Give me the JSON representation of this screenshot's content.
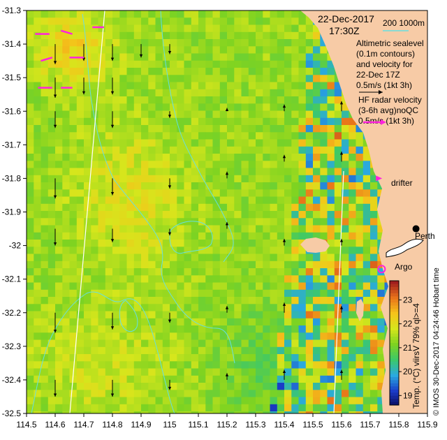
{
  "chart_data": {
    "type": "heatmap",
    "title_date": "22-Dec-2017",
    "title_time": "17:30Z",
    "xlim": [
      114.5,
      115.9
    ],
    "ylim": [
      -32.5,
      -31.3
    ],
    "x_ticks": [
      "114.5",
      "114.6",
      "114.7",
      "114.8",
      "114.9",
      "115",
      "115.1",
      "115.2",
      "115.3",
      "115.4",
      "115.5",
      "115.6",
      "115.7",
      "115.8",
      "115.9"
    ],
    "y_ticks": [
      "-31.3",
      "-31.4",
      "-31.5",
      "-31.6",
      "-31.7",
      "-31.8",
      "-31.9",
      "-32",
      "-32.1",
      "-32.2",
      "-32.3",
      "-32.4",
      "-32.5"
    ],
    "x_tick_values": [
      114.5,
      114.6,
      114.7,
      114.8,
      114.9,
      115.0,
      115.1,
      115.2,
      115.3,
      115.4,
      115.5,
      115.6,
      115.7,
      115.8,
      115.9
    ],
    "y_tick_values": [
      -31.3,
      -31.4,
      -31.5,
      -31.6,
      -31.7,
      -31.8,
      -31.9,
      -32.0,
      -32.1,
      -32.2,
      -32.3,
      -32.4,
      -32.5
    ],
    "colorbar": {
      "label": "Temp. (°C) viirsV 79% ql>=4",
      "ticks": [
        "19",
        "20",
        "21",
        "22",
        "23"
      ],
      "tick_values": [
        19,
        20,
        21,
        22,
        23
      ],
      "range": [
        18.6,
        23.8
      ],
      "stops": [
        "#0a0a5a",
        "#1a3cc8",
        "#2aa9e0",
        "#3cc86a",
        "#7ed321",
        "#d6e61c",
        "#f5c31a",
        "#e8731a",
        "#a01e1e"
      ]
    },
    "depth_legend": {
      "text": "200  1000m",
      "color": "#66e0e0"
    },
    "annotations": {
      "altimetry": [
        "Altimetric sealevel",
        "(0.1m contours)",
        "and velocity for",
        "22-Dec 17Z",
        "0.5m/s (1kt 3h)"
      ],
      "hf_radar": [
        "HF radar velocity",
        "(3-6h avg)noQC",
        "0.5m/s (1kt 3h)"
      ],
      "drifter": "drifter",
      "argo": "Argo",
      "perth": "Perth",
      "rottnest": "",
      "credit": "© IMOS 30-Dec-2017 04:24:46 Hobart time"
    },
    "colors": {
      "land": "#f7cba6",
      "contour": "#66e0e0",
      "isobath": "#ffffff",
      "drifter": "#ff22dd",
      "argo": "#ff22dd",
      "vector": "#000000"
    },
    "drifter_pos": [
      115.72,
      -31.8
    ],
    "argo_pos": [
      115.74,
      -32.07
    ],
    "perth_pos": [
      115.86,
      -31.95
    ],
    "vectors": [
      [
        114.6,
        -31.4,
        0.0,
        -0.06
      ],
      [
        114.7,
        -31.4,
        0.0,
        -0.05
      ],
      [
        114.8,
        -31.4,
        0.0,
        -0.05
      ],
      [
        114.9,
        -31.4,
        0.0,
        -0.04
      ],
      [
        115.0,
        -31.4,
        0.0,
        -0.03
      ],
      [
        114.6,
        -31.5,
        0.0,
        -0.06
      ],
      [
        114.7,
        -31.5,
        0.0,
        -0.05
      ],
      [
        114.8,
        -31.5,
        0.0,
        -0.05
      ],
      [
        114.6,
        -31.6,
        0.0,
        -0.05
      ],
      [
        114.8,
        -31.6,
        0.0,
        -0.05
      ],
      [
        115.0,
        -31.6,
        0.0,
        -0.02
      ],
      [
        115.2,
        -31.6,
        0.0,
        0.01
      ],
      [
        115.4,
        -31.6,
        0.0,
        0.02
      ],
      [
        115.6,
        -31.6,
        0.0,
        0.03
      ],
      [
        114.6,
        -31.8,
        0.0,
        -0.06
      ],
      [
        114.8,
        -31.8,
        0.0,
        -0.05
      ],
      [
        115.0,
        -31.8,
        0.0,
        -0.03
      ],
      [
        115.2,
        -31.8,
        0.0,
        0.02
      ],
      [
        115.4,
        -31.75,
        0.0,
        0.02
      ],
      [
        115.6,
        -31.75,
        0.0,
        0.03
      ],
      [
        114.6,
        -31.95,
        0.0,
        -0.05
      ],
      [
        114.8,
        -31.95,
        0.0,
        -0.04
      ],
      [
        115.0,
        -31.95,
        0.0,
        -0.02
      ],
      [
        115.2,
        -31.95,
        0.0,
        0.02
      ],
      [
        115.4,
        -32.0,
        0.0,
        0.02
      ],
      [
        115.6,
        -32.0,
        0.0,
        0.02
      ],
      [
        114.6,
        -32.2,
        0.0,
        -0.06
      ],
      [
        114.8,
        -32.2,
        0.0,
        -0.05
      ],
      [
        115.0,
        -32.2,
        0.0,
        -0.03
      ],
      [
        115.2,
        -32.2,
        0.0,
        0.02
      ],
      [
        115.4,
        -32.2,
        0.0,
        0.03
      ],
      [
        115.6,
        -32.2,
        0.0,
        0.02
      ],
      [
        114.6,
        -32.4,
        0.0,
        -0.05
      ],
      [
        114.8,
        -32.4,
        0.0,
        -0.05
      ],
      [
        115.0,
        -32.4,
        0.0,
        -0.03
      ],
      [
        115.2,
        -32.4,
        0.0,
        0.02
      ],
      [
        115.4,
        -32.4,
        0.0,
        0.03
      ],
      [
        115.6,
        -32.4,
        0.0,
        0.03
      ]
    ],
    "hf_vectors": [
      [
        114.53,
        -31.37,
        0.05,
        0.0
      ],
      [
        114.62,
        -31.36,
        0.04,
        -0.01
      ],
      [
        114.73,
        -31.35,
        0.04,
        0.0
      ],
      [
        114.55,
        -31.45,
        0.04,
        0.01
      ],
      [
        114.65,
        -31.44,
        0.05,
        0.0
      ],
      [
        114.54,
        -31.53,
        0.05,
        0.0
      ],
      [
        114.62,
        -31.53,
        0.04,
        0.0
      ]
    ]
  }
}
